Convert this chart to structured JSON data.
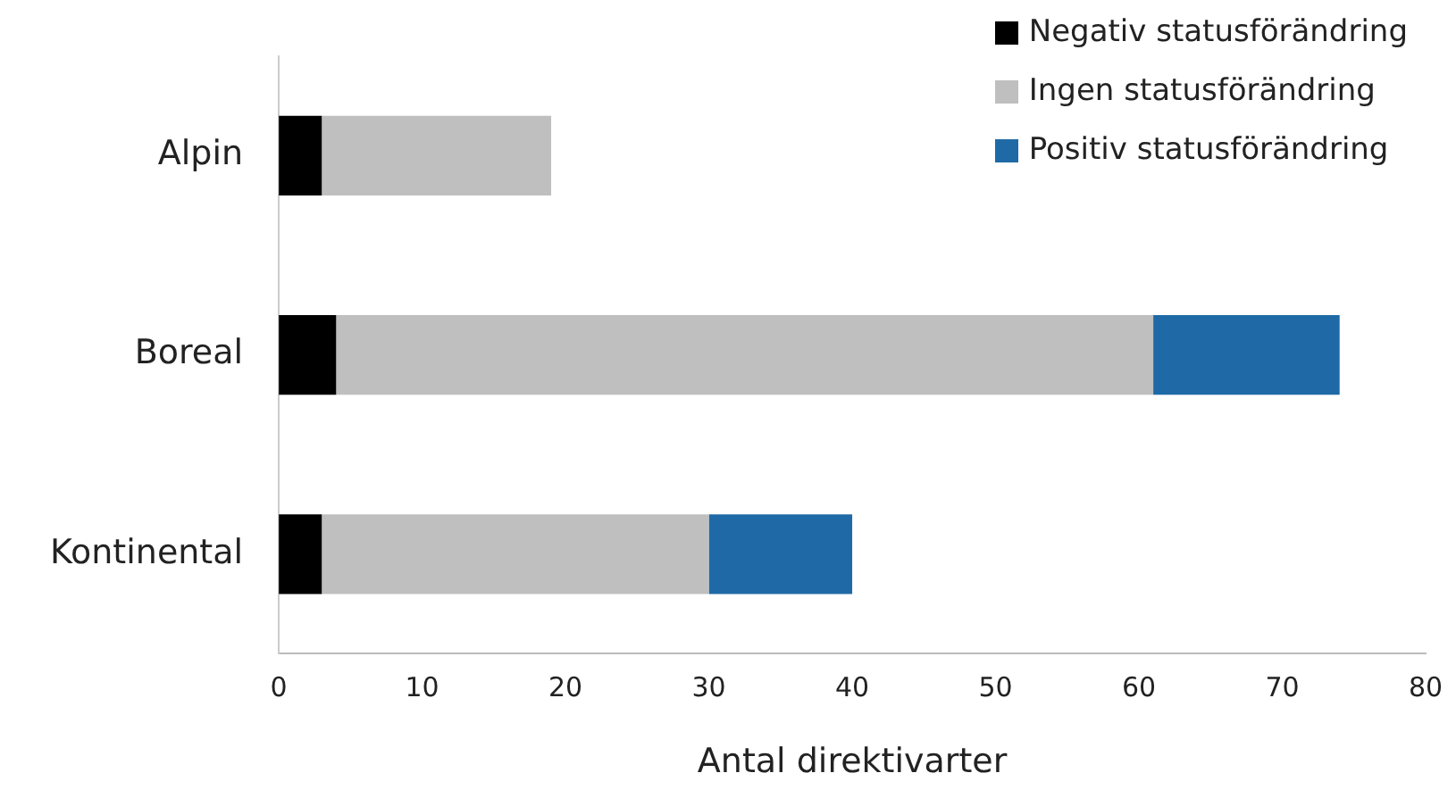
{
  "chart_data": {
    "type": "bar",
    "orientation": "horizontal",
    "stacked": true,
    "xlabel": "Antal direktivarter",
    "categories": [
      "Alpin",
      "Boreal",
      "Kontinental"
    ],
    "series": [
      {
        "name": "Negativ statusförändring",
        "color": "#000000",
        "values": [
          3,
          4,
          3
        ]
      },
      {
        "name": "Ingen statusförändring",
        "color": "#bfbfbf",
        "values": [
          16,
          57,
          27
        ]
      },
      {
        "name": "Positiv statusförändring",
        "color": "#1f6aa6",
        "values": [
          0,
          13,
          10
        ]
      }
    ],
    "xlim": [
      0,
      80
    ],
    "xticks": [
      0,
      10,
      20,
      30,
      40,
      50,
      60,
      70,
      80
    ],
    "grid": false,
    "legend": "top right"
  }
}
